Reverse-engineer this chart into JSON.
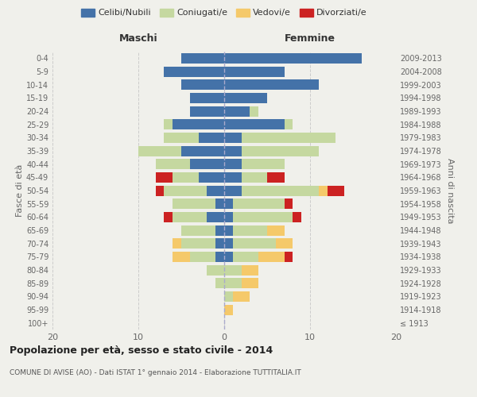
{
  "age_groups": [
    "100+",
    "95-99",
    "90-94",
    "85-89",
    "80-84",
    "75-79",
    "70-74",
    "65-69",
    "60-64",
    "55-59",
    "50-54",
    "45-49",
    "40-44",
    "35-39",
    "30-34",
    "25-29",
    "20-24",
    "15-19",
    "10-14",
    "5-9",
    "0-4"
  ],
  "birth_years": [
    "≤ 1913",
    "1914-1918",
    "1919-1923",
    "1924-1928",
    "1929-1933",
    "1934-1938",
    "1939-1943",
    "1944-1948",
    "1949-1953",
    "1954-1958",
    "1959-1963",
    "1964-1968",
    "1969-1973",
    "1974-1978",
    "1979-1983",
    "1984-1988",
    "1989-1993",
    "1994-1998",
    "1999-2003",
    "2004-2008",
    "2009-2013"
  ],
  "males": {
    "celibi": [
      0,
      0,
      0,
      0,
      0,
      1,
      1,
      1,
      2,
      1,
      2,
      3,
      4,
      5,
      3,
      6,
      4,
      4,
      5,
      7,
      5
    ],
    "coniugati": [
      0,
      0,
      0,
      1,
      2,
      3,
      4,
      4,
      4,
      5,
      5,
      3,
      4,
      5,
      4,
      1,
      0,
      0,
      0,
      0,
      0
    ],
    "vedovi": [
      0,
      0,
      0,
      0,
      0,
      2,
      1,
      0,
      0,
      0,
      0,
      0,
      0,
      0,
      0,
      0,
      0,
      0,
      0,
      0,
      0
    ],
    "divorziati": [
      0,
      0,
      0,
      0,
      0,
      0,
      0,
      0,
      1,
      0,
      1,
      2,
      0,
      0,
      0,
      0,
      0,
      0,
      0,
      0,
      0
    ]
  },
  "females": {
    "nubili": [
      0,
      0,
      0,
      0,
      0,
      1,
      1,
      1,
      1,
      1,
      2,
      2,
      2,
      2,
      2,
      7,
      3,
      5,
      11,
      7,
      16
    ],
    "coniugate": [
      0,
      0,
      1,
      2,
      2,
      3,
      5,
      4,
      7,
      6,
      9,
      3,
      5,
      9,
      11,
      1,
      1,
      0,
      0,
      0,
      0
    ],
    "vedove": [
      0,
      1,
      2,
      2,
      2,
      3,
      2,
      2,
      0,
      0,
      1,
      0,
      0,
      0,
      0,
      0,
      0,
      0,
      0,
      0,
      0
    ],
    "divorziate": [
      0,
      0,
      0,
      0,
      0,
      1,
      0,
      0,
      1,
      1,
      2,
      2,
      0,
      0,
      0,
      0,
      0,
      0,
      0,
      0,
      0
    ]
  },
  "colors": {
    "celibi": "#4472a8",
    "coniugati": "#c5d8a0",
    "vedovi": "#f5c96a",
    "divorziati": "#cc2222"
  },
  "xlim": 20,
  "title": "Popolazione per età, sesso e stato civile - 2014",
  "subtitle": "COMUNE DI AVISE (AO) - Dati ISTAT 1° gennaio 2014 - Elaborazione TUTTITALIA.IT",
  "ylabel_left": "Fasce di età",
  "ylabel_right": "Anni di nascita",
  "xlabel_left": "Maschi",
  "xlabel_right": "Femmine",
  "bg_color": "#f0f0eb",
  "grid_color": "#cccccc"
}
